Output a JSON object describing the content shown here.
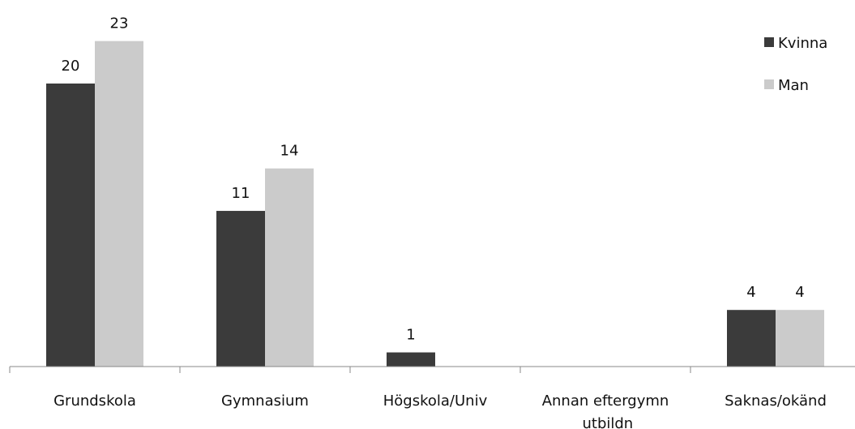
{
  "chart_data": {
    "type": "bar",
    "categories": [
      "Grundskola",
      "Gymnasium",
      "Högskola/Univ",
      "Annan eftergymn utbildn",
      "Saknas/okänd"
    ],
    "series": [
      {
        "name": "Kvinna",
        "color": "#3b3b3b",
        "values": [
          20,
          11,
          1,
          null,
          4
        ]
      },
      {
        "name": "Man",
        "color": "#cbcbcb",
        "values": [
          23,
          14,
          null,
          null,
          4
        ]
      }
    ],
    "ylim": [
      0,
      25
    ],
    "legend": "top-right"
  }
}
